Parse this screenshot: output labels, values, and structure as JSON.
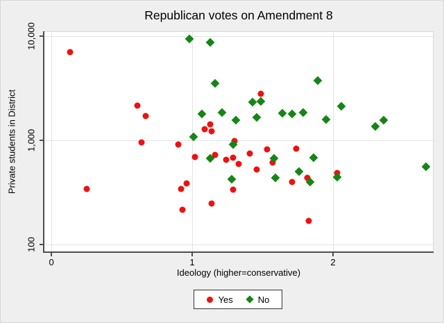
{
  "title": "Republican votes on Amendment 8",
  "chart_data": {
    "type": "scatter",
    "title": "Republican votes on Amendment 8",
    "xlabel": "Ideology (higher=conservative)",
    "ylabel": "Private students in District",
    "x_scale": "linear",
    "y_scale": "log",
    "xlim": [
      -0.05,
      2.71
    ],
    "ylim": [
      86,
      11000
    ],
    "x_ticks": [
      0,
      1,
      2
    ],
    "x_tick_labels": [
      "0",
      "1",
      "2"
    ],
    "y_ticks": [
      100,
      1000,
      10000
    ],
    "y_tick_labels": [
      "100",
      "1,000",
      "10,000"
    ],
    "grid": true,
    "colors": {
      "yes": "#ee1111",
      "no": "#158515",
      "gridline": "#e4e4e4",
      "spine": "#4d4d4d",
      "plot_bg": "#ffffff",
      "figure_bg": "#efefef"
    },
    "legend": {
      "position": "bottom-center",
      "entries": [
        {
          "label": "Yes",
          "marker": "circle",
          "color": "#ee1111"
        },
        {
          "label": "No",
          "marker": "diamond",
          "color": "#158515"
        }
      ]
    },
    "series": [
      {
        "name": "Yes",
        "marker": "circle",
        "color": "#ee1111",
        "points": [
          [
            0.13,
            7000
          ],
          [
            0.25,
            340
          ],
          [
            0.61,
            2150
          ],
          [
            0.67,
            1710
          ],
          [
            0.64,
            955
          ],
          [
            0.9,
            910
          ],
          [
            0.92,
            340
          ],
          [
            0.96,
            385
          ],
          [
            0.93,
            215
          ],
          [
            1.09,
            1280
          ],
          [
            1.13,
            1420
          ],
          [
            1.14,
            1220
          ],
          [
            1.02,
            690
          ],
          [
            1.16,
            725
          ],
          [
            1.24,
            650
          ],
          [
            1.29,
            680
          ],
          [
            1.33,
            595
          ],
          [
            1.3,
            985
          ],
          [
            1.41,
            745
          ],
          [
            1.49,
            2800
          ],
          [
            1.53,
            820
          ],
          [
            1.57,
            610
          ],
          [
            1.46,
            525
          ],
          [
            1.29,
            335
          ],
          [
            1.14,
            247
          ],
          [
            1.74,
            830
          ],
          [
            1.71,
            400
          ],
          [
            1.82,
            437
          ],
          [
            1.83,
            168
          ],
          [
            2.03,
            490
          ]
        ]
      },
      {
        "name": "No",
        "marker": "diamond",
        "color": "#158515",
        "points": [
          [
            0.98,
            9400
          ],
          [
            1.13,
            8800
          ],
          [
            1.16,
            3520
          ],
          [
            1.01,
            1080
          ],
          [
            1.07,
            1790
          ],
          [
            1.21,
            1850
          ],
          [
            1.31,
            1560
          ],
          [
            1.43,
            2330
          ],
          [
            1.49,
            2360
          ],
          [
            1.46,
            1660
          ],
          [
            1.29,
            910
          ],
          [
            1.13,
            670
          ],
          [
            1.58,
            670
          ],
          [
            1.28,
            423
          ],
          [
            1.59,
            437
          ],
          [
            1.64,
            1820
          ],
          [
            1.71,
            1790
          ],
          [
            1.79,
            1850
          ],
          [
            1.95,
            1585
          ],
          [
            1.89,
            3740
          ],
          [
            2.06,
            2120
          ],
          [
            2.3,
            1360
          ],
          [
            2.36,
            1560
          ],
          [
            1.86,
            680
          ],
          [
            1.76,
            500
          ],
          [
            1.84,
            400
          ],
          [
            2.03,
            443
          ],
          [
            2.66,
            560
          ]
        ]
      }
    ]
  }
}
